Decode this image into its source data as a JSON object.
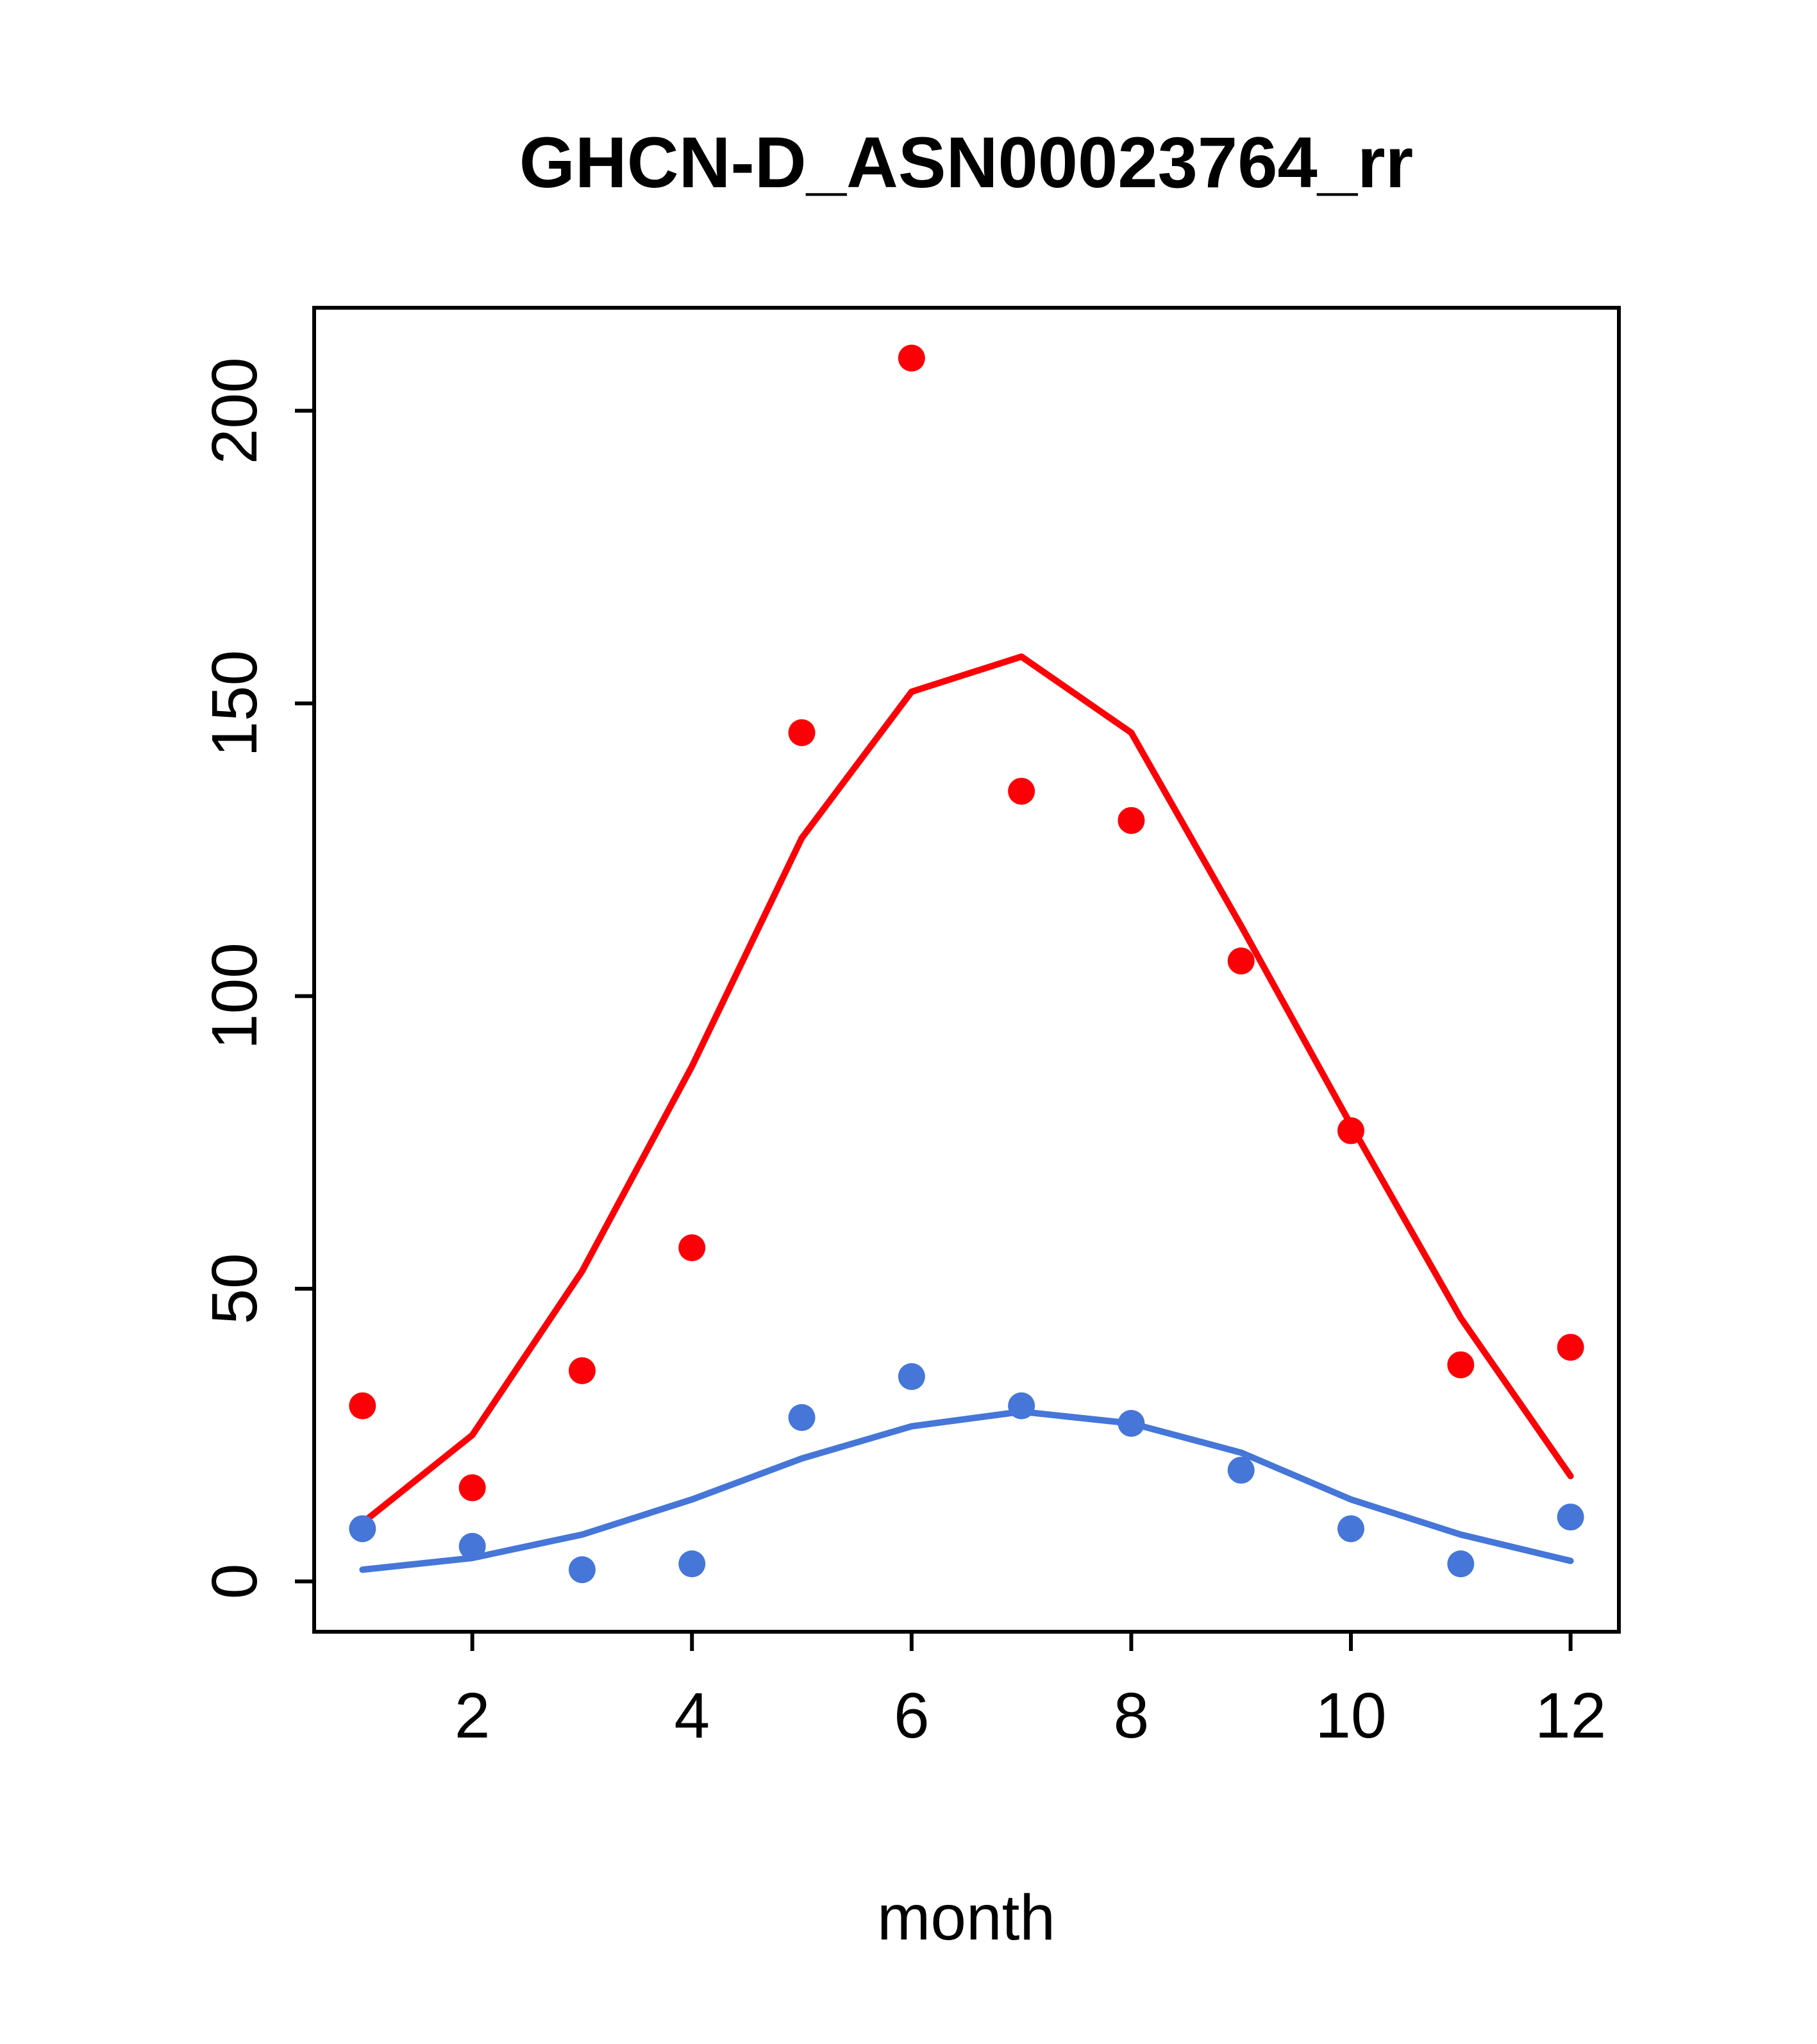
{
  "chart_data": {
    "type": "scatter",
    "title": "GHCN-D_ASN00023764_rr",
    "xlabel": "month",
    "ylabel": "",
    "x": [
      1,
      2,
      3,
      4,
      5,
      6,
      7,
      8,
      9,
      10,
      11,
      12
    ],
    "xlim": [
      0.56,
      12.44
    ],
    "ylim": [
      -8.6,
      217.6
    ],
    "xticks": [
      2,
      4,
      6,
      8,
      10,
      12
    ],
    "yticks": [
      0,
      50,
      100,
      150,
      200
    ],
    "grid": false,
    "legend": null,
    "colors": {
      "red": "#fb0006",
      "blue": "#4576d8",
      "axis": "#000000"
    },
    "series": [
      {
        "name": "red-monthly-points",
        "style": "points",
        "color": "#fb0006",
        "values": [
          30,
          16,
          36,
          57,
          145,
          209,
          135,
          130,
          106,
          77,
          37,
          40
        ]
      },
      {
        "name": "red-fit-line",
        "style": "line",
        "color": "#fb0006",
        "values": [
          10,
          25,
          53,
          88,
          127,
          152,
          158,
          145,
          112,
          78,
          45,
          18
        ]
      },
      {
        "name": "blue-monthly-points",
        "style": "points",
        "color": "#4576d8",
        "values": [
          9,
          6,
          2,
          3,
          28,
          35,
          30,
          27,
          19,
          9,
          3,
          11
        ]
      },
      {
        "name": "blue-fit-line",
        "style": "line",
        "color": "#4576d8",
        "values": [
          2,
          4,
          8,
          14,
          21,
          26.5,
          29,
          27,
          22,
          14,
          8,
          3.5
        ]
      }
    ]
  }
}
